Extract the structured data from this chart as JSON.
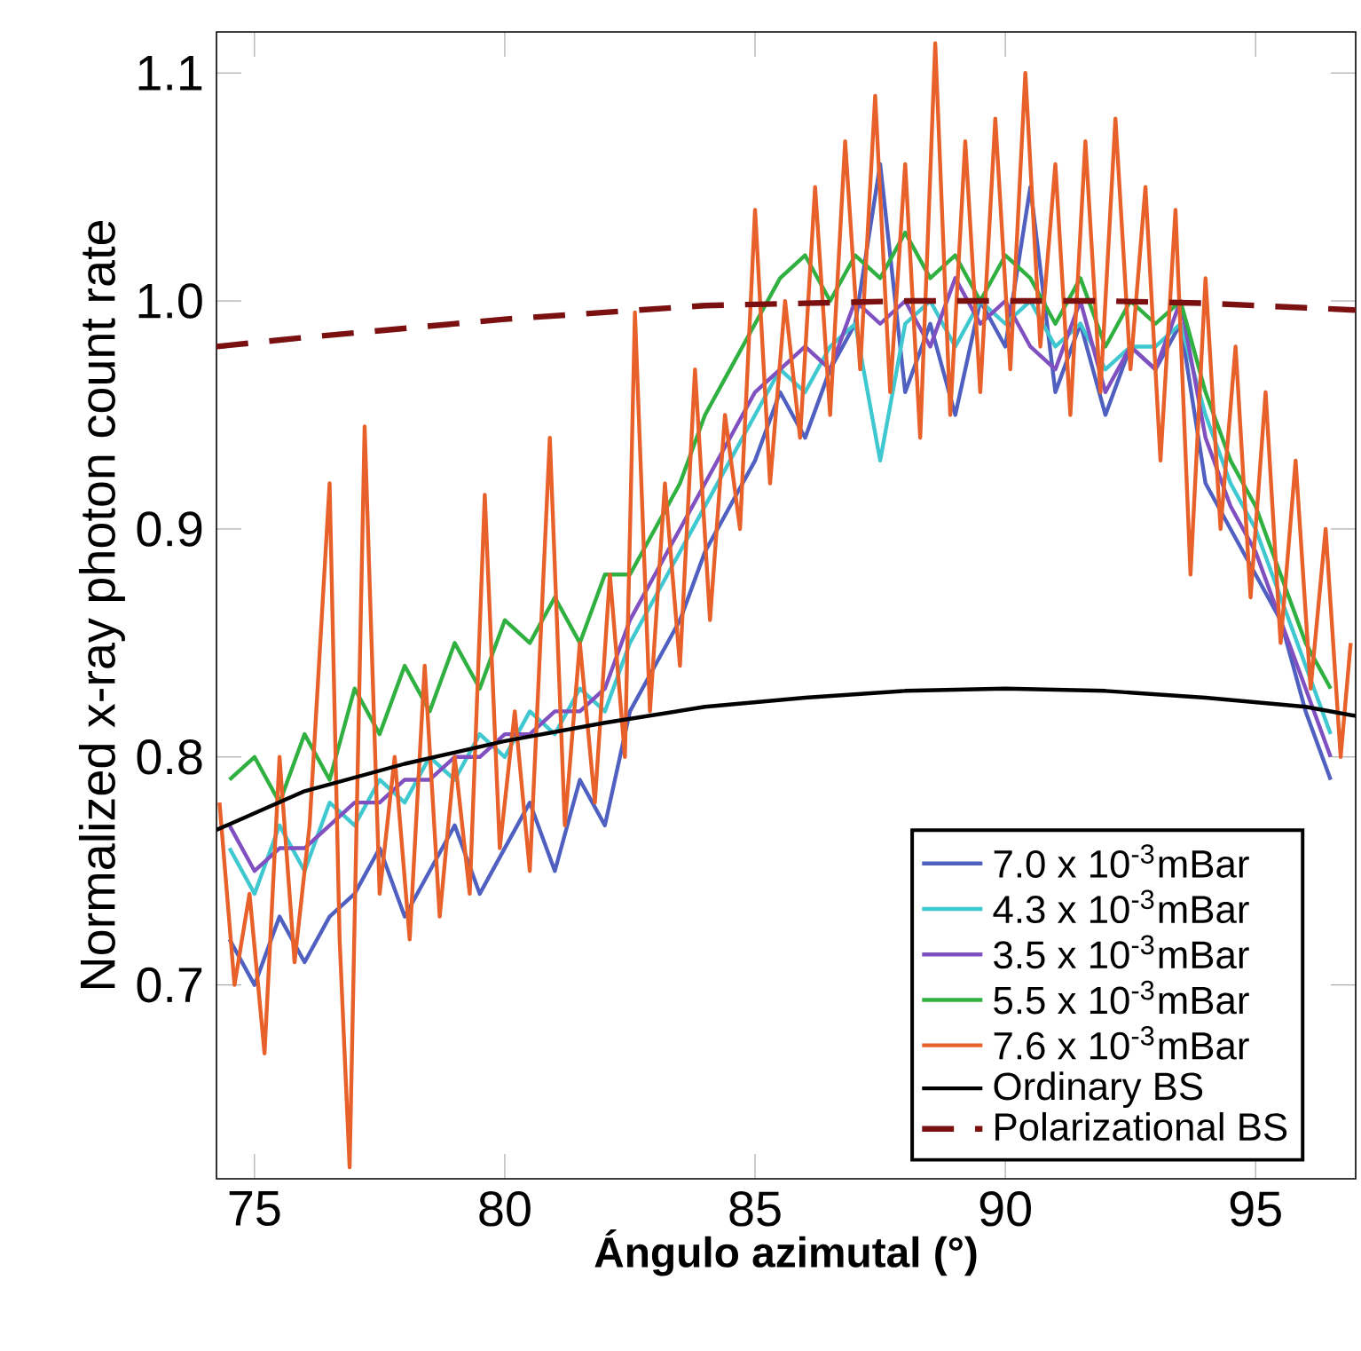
{
  "chart_data": {
    "type": "line",
    "xlabel": "Ángulo azimutal (°)",
    "ylabel": "Normalized  x-ray photon count rate",
    "xlim": [
      74.24,
      97.0
    ],
    "ylim": [
      0.615,
      1.118
    ],
    "xticks": [
      75,
      80,
      85,
      90,
      95
    ],
    "yticks": [
      {
        "value": 0.7,
        "label": "0.7"
      },
      {
        "value": 0.8,
        "label": "0.8"
      },
      {
        "value": 0.9,
        "label": "0.9"
      },
      {
        "value": 1.0,
        "label": "1.0"
      },
      {
        "value": 1.1,
        "label": "1.1"
      }
    ],
    "grid": false,
    "legend": "bottom right",
    "marker": "none",
    "x": [
      74.5,
      75,
      75.5,
      76,
      76.5,
      77,
      77.5,
      78,
      78.5,
      79,
      79.5,
      80,
      80.5,
      81,
      81.5,
      82,
      82.5,
      83,
      83.5,
      84,
      84.5,
      85,
      85.5,
      86,
      86.5,
      87,
      87.5,
      88,
      88.5,
      89,
      89.5,
      90,
      90.5,
      91,
      91.5,
      92,
      92.5,
      93,
      93.5,
      94,
      94.5,
      95,
      95.5,
      96,
      96.5
    ],
    "series": [
      {
        "name": "7.0 x 10$^{-3}$mBar",
        "color": "#5060c0",
        "values": [
          0.72,
          0.7,
          0.73,
          0.71,
          0.73,
          0.74,
          0.76,
          0.73,
          0.75,
          0.77,
          0.74,
          0.76,
          0.78,
          0.75,
          0.79,
          0.77,
          0.82,
          0.84,
          0.86,
          0.89,
          0.91,
          0.93,
          0.96,
          0.94,
          0.97,
          0.99,
          1.06,
          0.96,
          0.99,
          0.95,
          1.0,
          0.98,
          1.05,
          0.96,
          0.99,
          0.95,
          0.98,
          0.97,
          0.99,
          0.92,
          0.9,
          0.88,
          0.86,
          0.82,
          0.79
        ]
      },
      {
        "name": "4.3 x 10$^{-3}$mBar",
        "color": "#40c8d0",
        "values": [
          0.76,
          0.74,
          0.77,
          0.75,
          0.78,
          0.77,
          0.79,
          0.78,
          0.8,
          0.79,
          0.81,
          0.8,
          0.82,
          0.81,
          0.83,
          0.82,
          0.85,
          0.87,
          0.89,
          0.91,
          0.93,
          0.95,
          0.97,
          0.96,
          0.98,
          0.99,
          0.93,
          0.99,
          1.0,
          0.98,
          1.0,
          0.99,
          1.0,
          0.98,
          0.99,
          0.97,
          0.98,
          0.98,
          0.99,
          0.95,
          0.92,
          0.9,
          0.87,
          0.84,
          0.81
        ]
      },
      {
        "name": "3.5 x 10$^{-3}$mBar",
        "color": "#8050c0",
        "values": [
          0.77,
          0.75,
          0.76,
          0.76,
          0.77,
          0.78,
          0.78,
          0.79,
          0.79,
          0.8,
          0.8,
          0.81,
          0.81,
          0.82,
          0.82,
          0.83,
          0.86,
          0.88,
          0.9,
          0.92,
          0.94,
          0.96,
          0.97,
          0.98,
          0.97,
          1.0,
          0.99,
          1.0,
          0.98,
          1.01,
          0.99,
          1.0,
          0.98,
          0.97,
          1.0,
          0.96,
          0.98,
          0.97,
          1.0,
          0.94,
          0.91,
          0.89,
          0.86,
          0.83,
          0.8
        ]
      },
      {
        "name": "5.5 x 10$^{-3}$mBar",
        "color": "#30b040",
        "values": [
          0.79,
          0.8,
          0.78,
          0.81,
          0.79,
          0.83,
          0.81,
          0.84,
          0.82,
          0.85,
          0.83,
          0.86,
          0.85,
          0.87,
          0.85,
          0.88,
          0.88,
          0.9,
          0.92,
          0.95,
          0.97,
          0.99,
          1.01,
          1.02,
          1.0,
          1.02,
          1.01,
          1.03,
          1.01,
          1.02,
          1.0,
          1.02,
          1.01,
          0.99,
          1.01,
          0.98,
          1.0,
          0.99,
          1.0,
          0.96,
          0.93,
          0.91,
          0.88,
          0.85,
          0.83
        ]
      },
      {
        "name": "7.6 x 10$^{-3}$mBar",
        "color": "#e8602a",
        "x": [
          74.3,
          74.6,
          74.9,
          75.2,
          75.5,
          75.8,
          76.1,
          76.5,
          76.7,
          76.9,
          77.2,
          77.5,
          77.8,
          78.1,
          78.4,
          78.7,
          79.0,
          79.3,
          79.6,
          79.9,
          80.2,
          80.5,
          80.9,
          81.2,
          81.5,
          81.8,
          82.1,
          82.4,
          82.6,
          82.9,
          83.2,
          83.5,
          83.8,
          84.1,
          84.4,
          84.7,
          85.0,
          85.3,
          85.6,
          85.9,
          86.2,
          86.5,
          86.8,
          87.1,
          87.4,
          87.7,
          88.0,
          88.3,
          88.6,
          88.9,
          89.2,
          89.5,
          89.8,
          90.1,
          90.4,
          90.7,
          91.0,
          91.3,
          91.6,
          91.9,
          92.2,
          92.5,
          92.8,
          93.1,
          93.4,
          93.7,
          94.0,
          94.3,
          94.6,
          94.9,
          95.2,
          95.5,
          95.8,
          96.1,
          96.4,
          96.7,
          96.9
        ],
        "values": [
          0.78,
          0.7,
          0.74,
          0.67,
          0.8,
          0.71,
          0.77,
          0.92,
          0.72,
          0.62,
          0.945,
          0.74,
          0.8,
          0.72,
          0.84,
          0.73,
          0.8,
          0.74,
          0.915,
          0.76,
          0.82,
          0.75,
          0.94,
          0.77,
          0.85,
          0.78,
          0.88,
          0.8,
          0.995,
          0.82,
          0.92,
          0.84,
          0.97,
          0.86,
          0.95,
          0.9,
          1.04,
          0.92,
          1.0,
          0.94,
          1.05,
          0.95,
          1.07,
          0.97,
          1.09,
          0.96,
          1.06,
          0.94,
          1.113,
          0.95,
          1.07,
          0.96,
          1.08,
          0.97,
          1.1,
          0.98,
          1.06,
          0.95,
          1.07,
          0.96,
          1.08,
          0.97,
          1.05,
          0.93,
          1.04,
          0.88,
          1.01,
          0.9,
          0.98,
          0.87,
          0.96,
          0.85,
          0.93,
          0.83,
          0.9,
          0.8,
          0.85
        ]
      },
      {
        "name": "Ordinary BS",
        "color": "#000000",
        "x": [
          74.24,
          76,
          78,
          80,
          82,
          84,
          86,
          88,
          90,
          92,
          94,
          96,
          97
        ],
        "values": [
          0.768,
          0.785,
          0.797,
          0.807,
          0.815,
          0.822,
          0.826,
          0.829,
          0.83,
          0.829,
          0.826,
          0.822,
          0.818
        ]
      },
      {
        "name": "Polarizational BS",
        "color": "#7a1010",
        "line_style": "dashed",
        "x": [
          74.24,
          76,
          78,
          80,
          82,
          84,
          86,
          88,
          90,
          92,
          94,
          96,
          97
        ],
        "values": [
          0.98,
          0.984,
          0.988,
          0.992,
          0.995,
          0.998,
          0.999,
          1.0,
          1.0,
          1.0,
          0.999,
          0.997,
          0.996
        ]
      }
    ]
  }
}
